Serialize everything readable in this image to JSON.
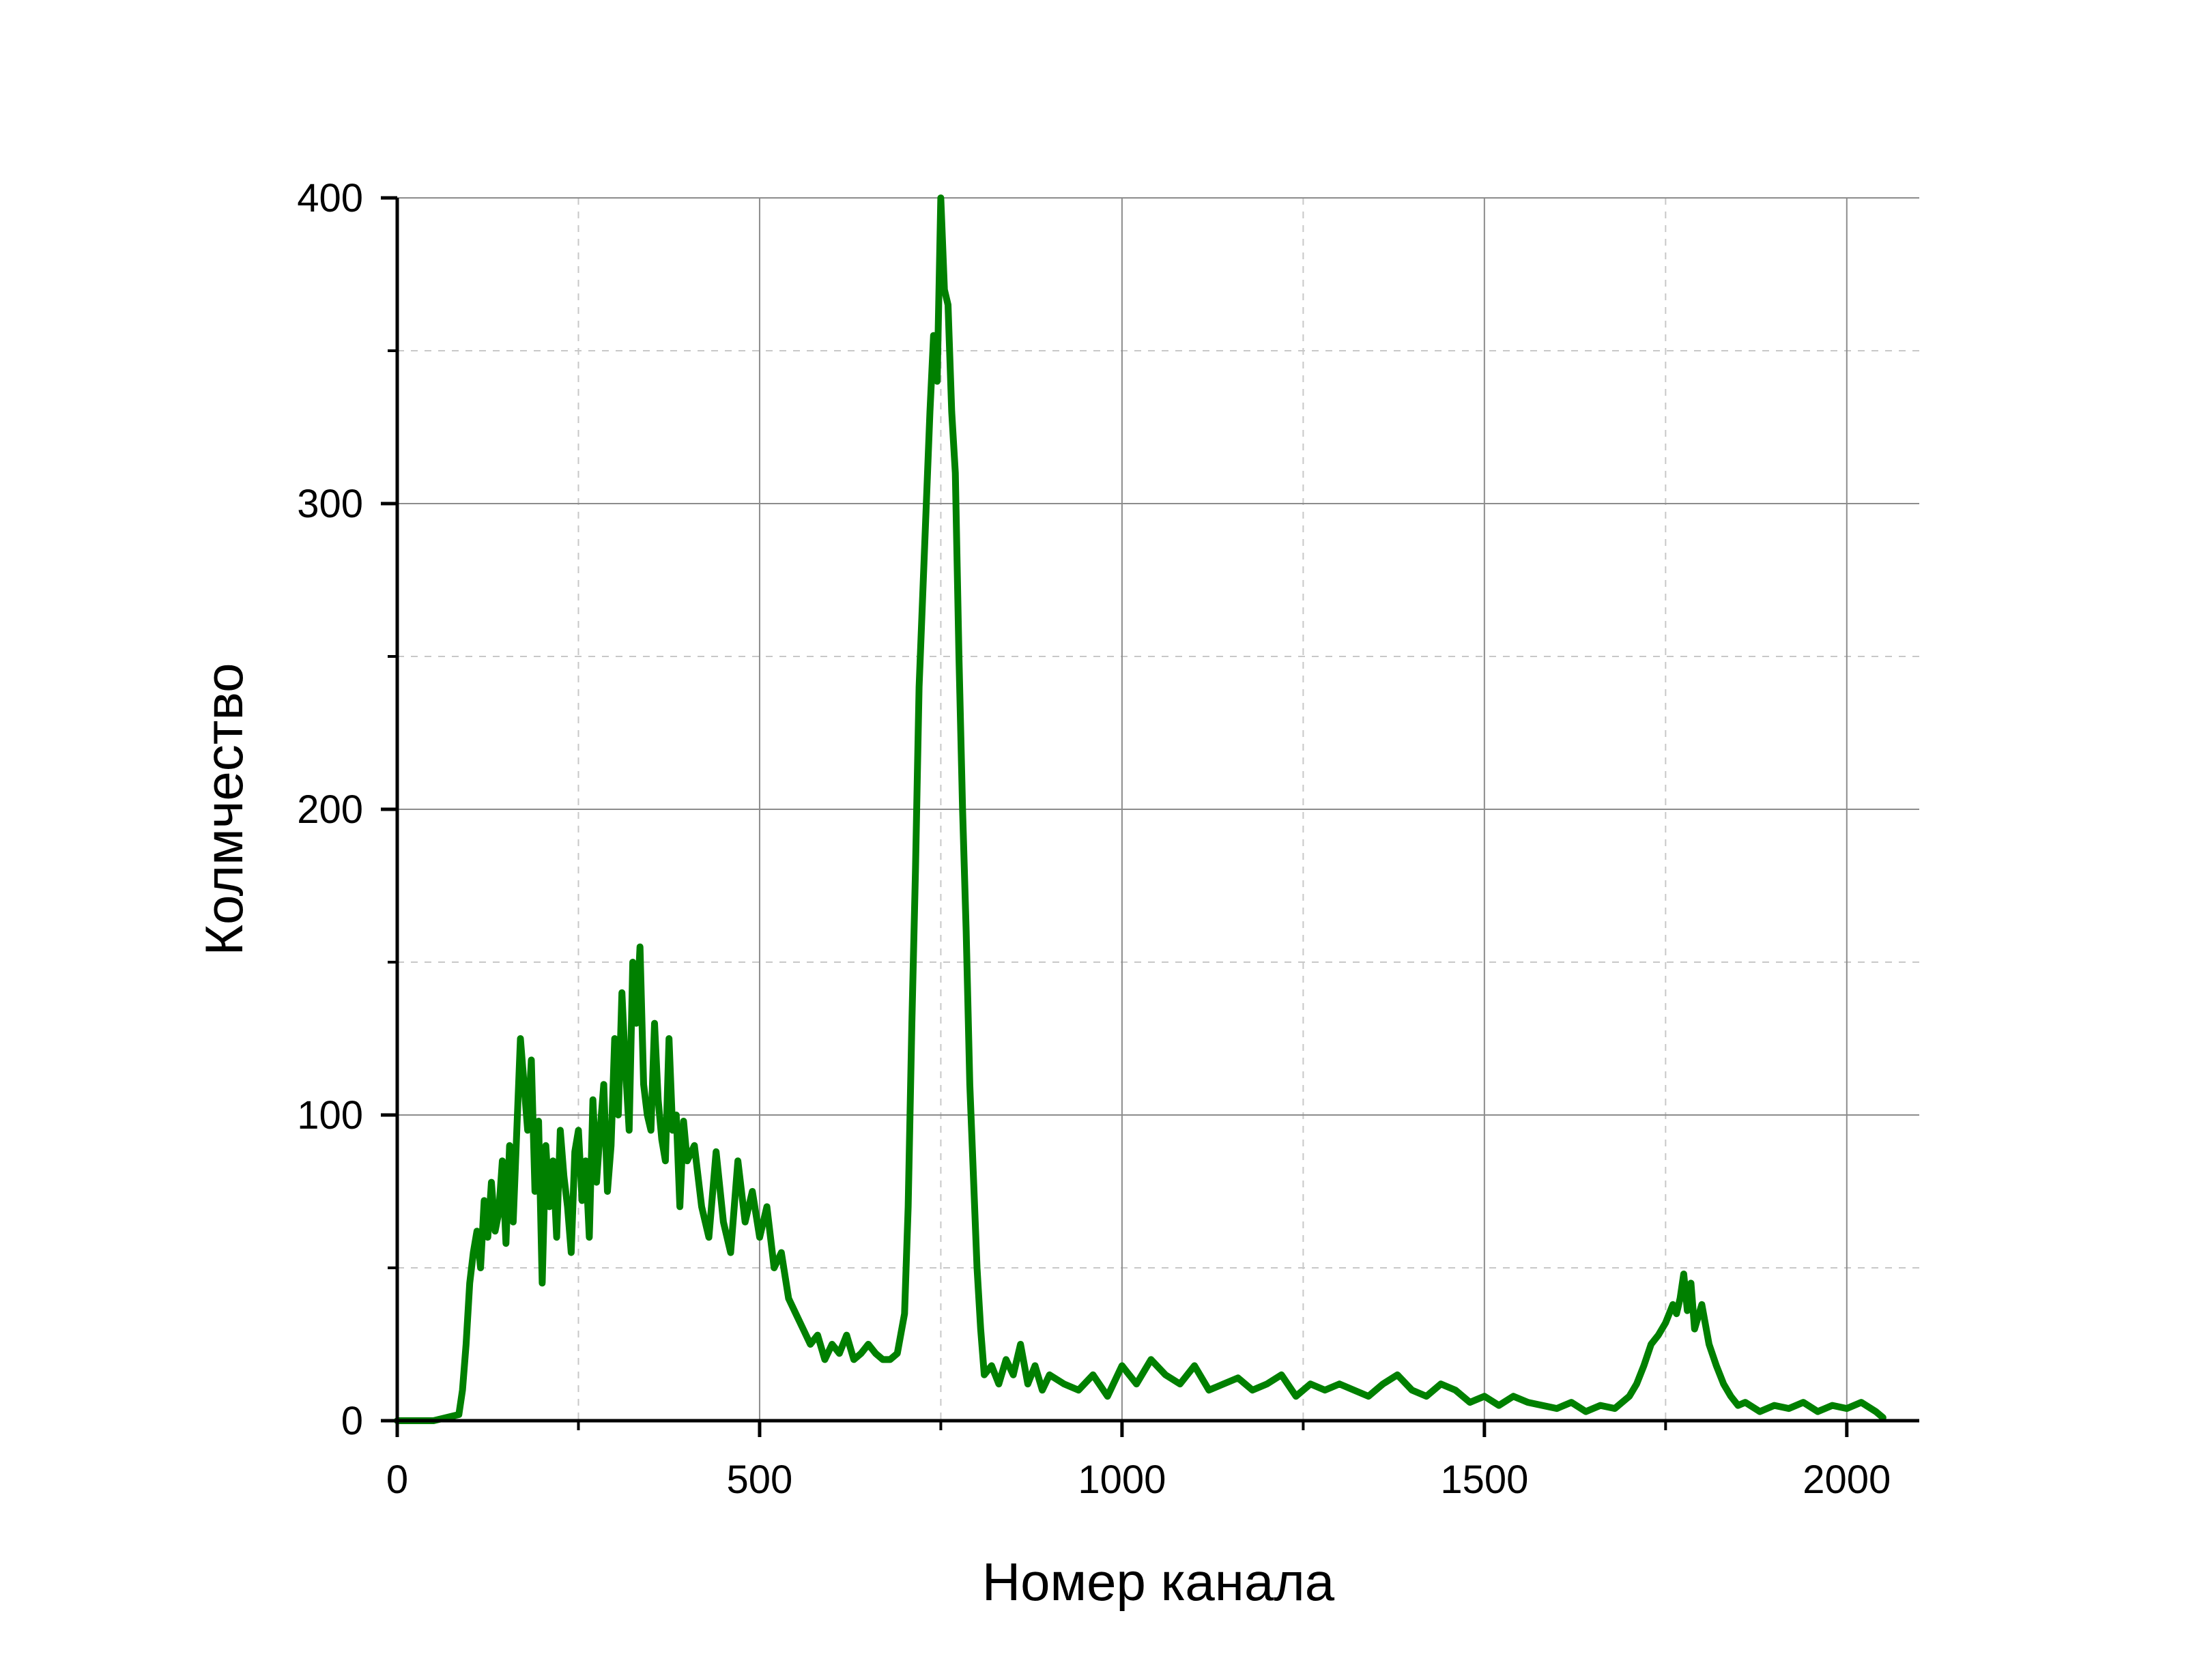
{
  "chart_data": {
    "type": "line",
    "title": "",
    "xlabel": "Номер канала",
    "ylabel": "Колмчество",
    "xlim": [
      0,
      2100
    ],
    "ylim": [
      0,
      400
    ],
    "x_ticks": [
      0,
      500,
      1000,
      1500,
      2000
    ],
    "x_tick_labels": [
      "0",
      "500",
      "1000",
      "1500",
      "2000"
    ],
    "y_ticks": [
      0,
      100,
      200,
      300,
      400
    ],
    "y_tick_labels": [
      "0",
      "100",
      "200",
      "300",
      "400"
    ],
    "x_minor_ticks": [
      250,
      750,
      1250,
      1750
    ],
    "y_minor_ticks": [
      50,
      150,
      250,
      350
    ],
    "grid": true,
    "legend": "none",
    "series": [
      {
        "color": "#008000",
        "x": [
          0,
          50,
          85,
          90,
          95,
          100,
          105,
          110,
          115,
          120,
          125,
          130,
          135,
          140,
          145,
          150,
          155,
          160,
          165,
          170,
          175,
          180,
          185,
          190,
          195,
          200,
          205,
          210,
          215,
          220,
          225,
          230,
          235,
          240,
          245,
          250,
          255,
          260,
          265,
          270,
          275,
          280,
          285,
          290,
          295,
          300,
          305,
          310,
          315,
          320,
          325,
          330,
          335,
          340,
          345,
          350,
          355,
          360,
          365,
          370,
          375,
          380,
          385,
          390,
          395,
          400,
          410,
          420,
          430,
          440,
          450,
          460,
          470,
          480,
          490,
          500,
          510,
          520,
          530,
          540,
          550,
          560,
          570,
          580,
          590,
          600,
          610,
          620,
          630,
          640,
          650,
          660,
          670,
          680,
          690,
          700,
          705,
          710,
          715,
          720,
          725,
          730,
          735,
          740,
          745,
          750,
          755,
          760,
          765,
          770,
          775,
          780,
          785,
          790,
          795,
          800,
          805,
          810,
          820,
          830,
          840,
          850,
          860,
          870,
          880,
          890,
          900,
          920,
          940,
          960,
          980,
          1000,
          1020,
          1040,
          1060,
          1080,
          1100,
          1120,
          1140,
          1160,
          1180,
          1200,
          1220,
          1240,
          1260,
          1280,
          1300,
          1320,
          1340,
          1360,
          1380,
          1400,
          1420,
          1440,
          1460,
          1480,
          1500,
          1520,
          1540,
          1560,
          1580,
          1600,
          1620,
          1640,
          1660,
          1680,
          1700,
          1710,
          1720,
          1730,
          1740,
          1750,
          1760,
          1765,
          1770,
          1775,
          1780,
          1785,
          1790,
          1800,
          1810,
          1820,
          1830,
          1840,
          1850,
          1860,
          1880,
          1900,
          1920,
          1940,
          1960,
          1980,
          2000,
          2020,
          2040,
          2050
        ],
        "y": [
          0,
          0,
          2,
          10,
          25,
          45,
          55,
          62,
          50,
          72,
          60,
          78,
          62,
          68,
          85,
          58,
          90,
          65,
          95,
          125,
          110,
          95,
          118,
          75,
          98,
          45,
          90,
          70,
          85,
          60,
          95,
          80,
          70,
          55,
          88,
          95,
          72,
          85,
          60,
          105,
          78,
          95,
          110,
          75,
          90,
          125,
          100,
          140,
          115,
          95,
          150,
          130,
          155,
          110,
          100,
          95,
          130,
          105,
          92,
          85,
          125,
          95,
          100,
          70,
          98,
          85,
          90,
          70,
          60,
          88,
          65,
          55,
          85,
          65,
          75,
          60,
          70,
          50,
          55,
          40,
          35,
          30,
          25,
          28,
          20,
          25,
          22,
          28,
          20,
          22,
          25,
          22,
          20,
          20,
          22,
          35,
          70,
          130,
          180,
          240,
          270,
          300,
          330,
          355,
          340,
          400,
          370,
          365,
          330,
          310,
          250,
          200,
          160,
          110,
          80,
          50,
          30,
          15,
          18,
          12,
          20,
          15,
          25,
          12,
          18,
          10,
          15,
          12,
          10,
          15,
          8,
          18,
          12,
          20,
          15,
          12,
          18,
          10,
          12,
          14,
          10,
          12,
          15,
          8,
          12,
          10,
          12,
          10,
          8,
          12,
          15,
          10,
          8,
          12,
          10,
          6,
          8,
          5,
          8,
          6,
          5,
          4,
          6,
          3,
          5,
          4,
          8,
          12,
          18,
          25,
          28,
          32,
          38,
          35,
          40,
          48,
          36,
          45,
          30,
          38,
          25,
          18,
          12,
          8,
          5,
          6,
          3,
          5,
          4,
          6,
          3,
          5,
          4,
          6,
          3,
          1
        ]
      }
    ]
  }
}
